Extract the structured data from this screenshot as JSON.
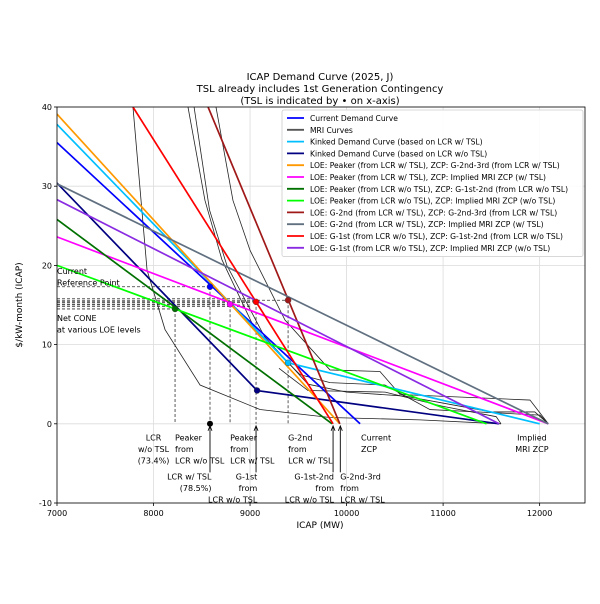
{
  "chart_data": {
    "type": "line",
    "title": [
      "ICAP Demand Curve (2025, J)",
      "TSL already includes 1st Generation Contingency",
      "(TSL is indicated by • on x-axis)"
    ],
    "xlabel": "ICAP (MW)",
    "ylabel": "$/kW-month (ICAP)",
    "xlim": [
      7000,
      12470
    ],
    "ylim": [
      -10,
      40
    ],
    "xticks": [
      7000,
      8000,
      9000,
      10000,
      11000,
      12000
    ],
    "yticks": [
      -10,
      0,
      10,
      20,
      30,
      40
    ],
    "grid": true,
    "legend_position": "top-right",
    "series": [
      {
        "name": "Current Demand Curve",
        "color": "#0000ff",
        "points": [
          [
            7000,
            35.5
          ],
          [
            10140,
            0
          ]
        ]
      },
      {
        "name": "MRI Curves",
        "color": "#555555",
        "mri": true,
        "points": []
      },
      {
        "name": "Kinked Demand Curve (based on LCR w/ TSL)",
        "color": "#00bfff",
        "points": [
          [
            7000,
            37.8
          ],
          [
            9394,
            7.7
          ],
          [
            12000,
            0
          ]
        ]
      },
      {
        "name": "Kinked Demand Curve (based on LCR w/o TSL)",
        "color": "#000080",
        "points": [
          [
            7000,
            30.4
          ],
          [
            9073,
            4.2
          ],
          [
            11580,
            0
          ]
        ]
      },
      {
        "name": "LOE: Peaker (from LCR w/ TSL), ZCP: G-2nd-3rd (from LCR w/ TSL)",
        "color": "#ff9900",
        "points": [
          [
            7000,
            39.1
          ],
          [
            9930,
            0
          ]
        ]
      },
      {
        "name": "LOE: Peaker (from LCR w/ TSL), ZCP: Implied MRI ZCP (w/ TSL)",
        "color": "#ff00ff",
        "points": [
          [
            7000,
            23.6
          ],
          [
            12090,
            0
          ]
        ]
      },
      {
        "name": "LOE: Peaker (from LCR w/o TSL), ZCP: G-1st-2nd (from LCR w/o TSL)",
        "color": "#007000",
        "points": [
          [
            7000,
            25.8
          ],
          [
            9850,
            0
          ]
        ]
      },
      {
        "name": "LOE: Peaker (from LCR w/o TSL), ZCP: Implied MRI ZCP (w/o TSL)",
        "color": "#00ff00",
        "points": [
          [
            7000,
            20.0
          ],
          [
            11450,
            0
          ]
        ]
      },
      {
        "name": "LOE: G-2nd (from LCR w/ TSL), ZCP: G-2nd-3rd (from LCR w/ TSL)",
        "color": "#a01818",
        "points": [
          [
            8565,
            40
          ],
          [
            9930,
            0
          ]
        ]
      },
      {
        "name": "LOE: G-2nd (from LCR w/ TSL), ZCP: Implied MRI ZCP (w/ TSL)",
        "color": "#607080",
        "points": [
          [
            7000,
            30.3
          ],
          [
            12090,
            0
          ]
        ]
      },
      {
        "name": "LOE: G-1st (from LCR w/o TSL), ZCP: G-1st-2nd (from LCR w/o TSL)",
        "color": "#ff0000",
        "points": [
          [
            7787,
            40
          ],
          [
            9860,
            0
          ]
        ]
      },
      {
        "name": "LOE: G-1st (from LCR w/o TSL), ZCP: Implied MRI ZCP (w/o TSL)",
        "color": "#8a2be2",
        "points": [
          [
            7000,
            28.3
          ],
          [
            11580,
            0
          ]
        ]
      }
    ],
    "mri_curves": [
      [
        [
          7787,
          40
        ],
        [
          7933,
          19.4
        ],
        [
          8119,
          11.9
        ],
        [
          8482,
          4.9
        ],
        [
          9103,
          1.8
        ],
        [
          9828,
          0.8
        ],
        [
          10760,
          0.5
        ],
        [
          11600,
          0
        ]
      ],
      [
        [
          8357,
          40
        ],
        [
          8533,
          28.2
        ],
        [
          8709,
          20.7
        ],
        [
          9051,
          11.9
        ],
        [
          9518,
          6.2
        ],
        [
          9828,
          5.2
        ],
        [
          10398,
          4.9
        ],
        [
          10864,
          1.8
        ],
        [
          12004,
          1.1
        ],
        [
          12090,
          0
        ]
      ],
      [
        [
          8647,
          40
        ],
        [
          8823,
          28.2
        ],
        [
          9000,
          21.9
        ],
        [
          9362,
          13.1
        ],
        [
          9828,
          6.8
        ],
        [
          10346,
          6.6
        ],
        [
          10554,
          3.7
        ],
        [
          11900,
          3.0
        ],
        [
          12090,
          0
        ]
      ],
      [
        [
          8420,
          40
        ],
        [
          8580,
          27
        ],
        [
          8760,
          20
        ],
        [
          9150,
          11
        ],
        [
          9600,
          5
        ],
        [
          10000,
          4
        ],
        [
          10600,
          3.5
        ],
        [
          11500,
          1.5
        ],
        [
          11950,
          1.5
        ],
        [
          12090,
          0
        ]
      ],
      [
        [
          9300,
          7
        ],
        [
          9600,
          4.2
        ],
        [
          10400,
          4.0
        ],
        [
          11000,
          2.2
        ],
        [
          11550,
          0.9
        ],
        [
          11600,
          0
        ]
      ]
    ],
    "points": [
      {
        "x": 8585,
        "y": 17.3,
        "color": "#0000ff"
      },
      {
        "x": 8223,
        "y": 14.5,
        "color": "#007000"
      },
      {
        "x": 8793,
        "y": 15.1,
        "color": "#ff00ff"
      },
      {
        "x": 9062,
        "y": 15.4,
        "color": "#ff0000"
      },
      {
        "x": 9394,
        "y": 15.6,
        "color": "#a01818"
      },
      {
        "x": 9073,
        "y": 4.2,
        "color": "#000080"
      },
      {
        "x": 9394,
        "y": 7.7,
        "color": "#00bfff"
      }
    ],
    "tsl_marker": {
      "x": 8585,
      "y": 0
    },
    "annotations": [
      {
        "lines": [
          "Current",
          "Reference Point"
        ],
        "x": 7000,
        "y": 19.9,
        "anchor": "start"
      },
      {
        "lines": [
          "Net CONE",
          "at various LOE levels"
        ],
        "x": 7000,
        "y": 14.0,
        "anchor": "start"
      },
      {
        "lines": [
          "LCR",
          "w/o TSL",
          "(73.4%)"
        ],
        "x": 8000,
        "y": -1.1,
        "anchor": "middle"
      },
      {
        "lines": [
          "Peaker",
          "from",
          "LCR w/o TSL"
        ],
        "x": 8223,
        "y": -1.1,
        "anchor": "start"
      },
      {
        "lines": [
          "Peaker",
          "from",
          "LCR w/ TSL"
        ],
        "x": 8793,
        "y": -1.1,
        "anchor": "start"
      },
      {
        "lines": [
          "G-2nd",
          "from",
          "LCR w/ TSL"
        ],
        "x": 9394,
        "y": -1.1,
        "anchor": "start"
      },
      {
        "lines": [
          "Current",
          "ZCP"
        ],
        "x": 10150,
        "y": -1.1,
        "anchor": "start"
      },
      {
        "lines": [
          "Implied",
          "MRI ZCP"
        ],
        "x": 11920,
        "y": -1.1,
        "anchor": "middle"
      },
      {
        "lines": [
          "LCR w/ TSL",
          "(78.5%)"
        ],
        "x": 8600,
        "y": -6.0,
        "anchor": "end",
        "arrow_x": 8585
      },
      {
        "lines": [
          "G-1st",
          "from",
          "LCR w/o TSL"
        ],
        "x": 9075,
        "y": -6.0,
        "anchor": "end",
        "arrow_x": 9062
      },
      {
        "lines": [
          "G-1st-2nd",
          "from",
          "LCR w/o TSL"
        ],
        "x": 9870,
        "y": -6.0,
        "anchor": "end",
        "arrow_x": 9860
      },
      {
        "lines": [
          "G-2nd-3rd",
          "from",
          "LCR w/ TSL"
        ],
        "x": 9935,
        "y": -6.0,
        "anchor": "start",
        "arrow_x": 9935
      }
    ]
  }
}
